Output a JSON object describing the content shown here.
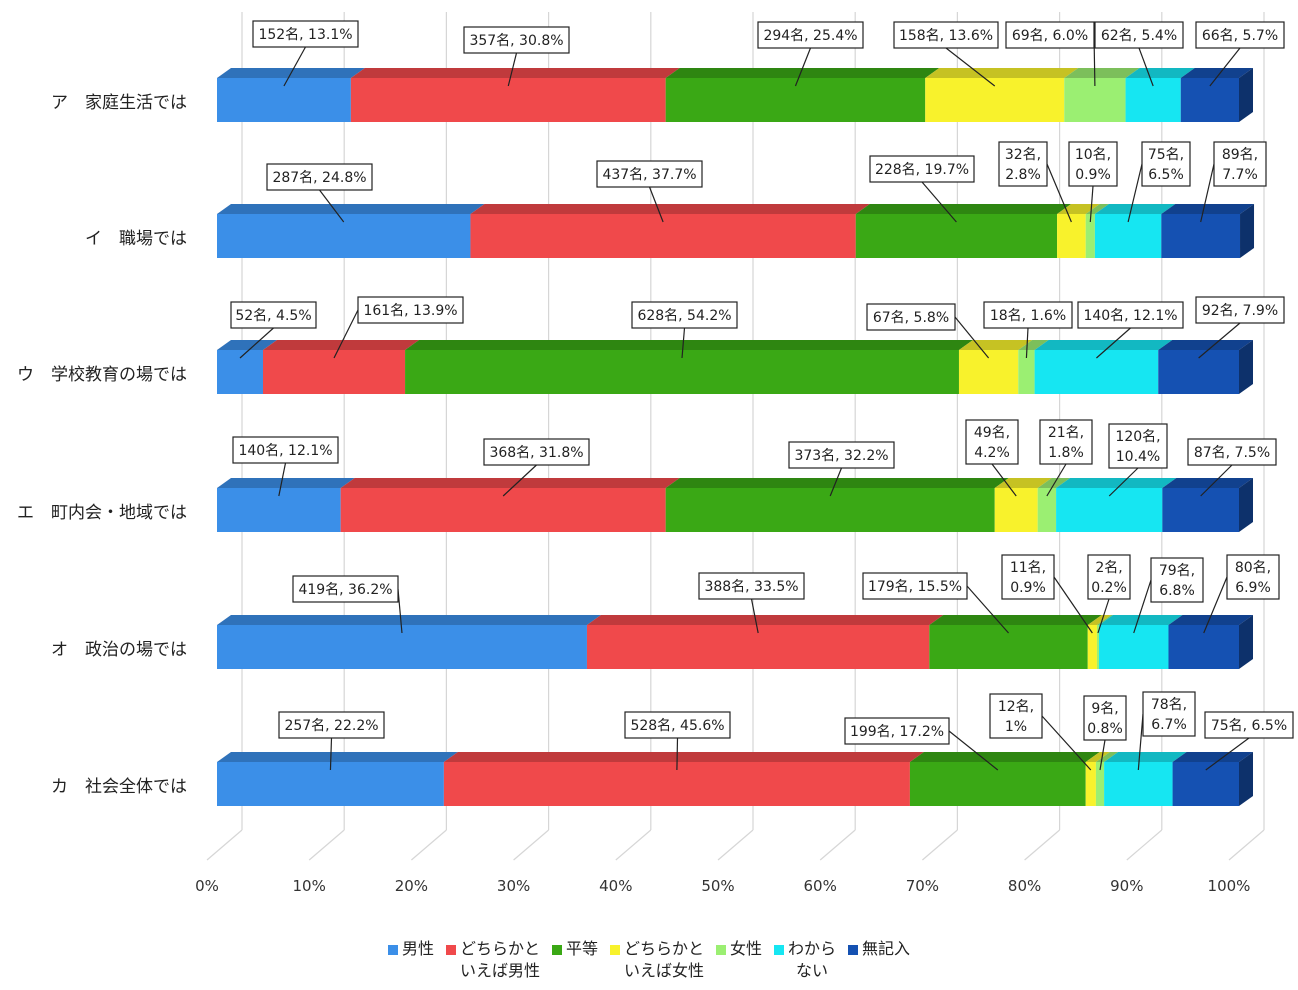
{
  "chart_data": {
    "type": "bar",
    "orientation": "horizontal-stacked-100",
    "categories": [
      "ア　家庭生活では",
      "イ　職場では",
      "ウ　学校教育の場では",
      "エ　町内会・地域では",
      "オ　政治の場では",
      "カ　社会全体では"
    ],
    "x_ticks": [
      "0%",
      "10%",
      "20%",
      "30%",
      "40%",
      "50%",
      "60%",
      "70%",
      "80%",
      "90%",
      "100%"
    ],
    "xlim": [
      0,
      100
    ],
    "grid": true,
    "legend_position": "bottom",
    "series": [
      {
        "name": "男性",
        "legend_lines": [
          "男性"
        ],
        "color": "#3b8fe8",
        "values": [
          13.1,
          24.8,
          4.5,
          12.1,
          36.2,
          22.2
        ],
        "labels": [
          [
            "152名, 13.1%"
          ],
          [
            "287名, 24.8%"
          ],
          [
            "52名, 4.5%"
          ],
          [
            "140名, 12.1%"
          ],
          [
            "419名, 36.2%"
          ],
          [
            "257名, 22.2%"
          ]
        ]
      },
      {
        "name": "どちらかといえば男性",
        "legend_lines": [
          "どちらかと",
          "いえば男性"
        ],
        "color": "#f0494b",
        "values": [
          30.8,
          37.7,
          13.9,
          31.8,
          33.5,
          45.6
        ],
        "labels": [
          [
            "357名, 30.8%"
          ],
          [
            "437名, 37.7%"
          ],
          [
            "161名, 13.9%"
          ],
          [
            "368名, 31.8%"
          ],
          [
            "388名, 33.5%"
          ],
          [
            "528名, 45.6%"
          ]
        ]
      },
      {
        "name": "平等",
        "legend_lines": [
          "平等"
        ],
        "color": "#3aa815",
        "values": [
          25.4,
          19.7,
          54.2,
          32.2,
          15.5,
          17.2
        ],
        "labels": [
          [
            "294名, 25.4%"
          ],
          [
            "228名, 19.7%"
          ],
          [
            "628名, 54.2%"
          ],
          [
            "373名, 32.2%"
          ],
          [
            "179名, 15.5%"
          ],
          [
            "199名, 17.2%"
          ]
        ]
      },
      {
        "name": "どちらかといえば女性",
        "legend_lines": [
          "どちらかと",
          "いえば女性"
        ],
        "color": "#f8f22c",
        "values": [
          13.6,
          2.8,
          5.8,
          4.2,
          0.9,
          1.0
        ],
        "labels": [
          [
            "158名, 13.6%"
          ],
          [
            "32名,",
            "2.8%"
          ],
          [
            "67名, 5.8%"
          ],
          [
            "49名,",
            "4.2%"
          ],
          [
            "11名,",
            "0.9%"
          ],
          [
            "12名,",
            "1%"
          ]
        ]
      },
      {
        "name": "女性",
        "legend_lines": [
          "女性"
        ],
        "color": "#9bef72",
        "values": [
          6.0,
          0.9,
          1.6,
          1.8,
          0.2,
          0.8
        ],
        "labels": [
          [
            "69名, 6.0%"
          ],
          [
            "10名,",
            "0.9%"
          ],
          [
            "18名, 1.6%"
          ],
          [
            "21名,",
            "1.8%"
          ],
          [
            "2名,",
            "0.2%"
          ],
          [
            "9名,",
            "0.8%"
          ]
        ]
      },
      {
        "name": "わからない",
        "legend_lines": [
          "わから",
          "ない"
        ],
        "color": "#16e6f2",
        "values": [
          5.4,
          6.5,
          12.1,
          10.4,
          6.8,
          6.7
        ],
        "labels": [
          [
            "62名, 5.4%"
          ],
          [
            "75名,",
            "6.5%"
          ],
          [
            "140名, 12.1%"
          ],
          [
            "120名,",
            "10.4%"
          ],
          [
            "79名,",
            "6.8%"
          ],
          [
            "78名,",
            "6.7%"
          ]
        ]
      },
      {
        "name": "無記入",
        "legend_lines": [
          "無記入"
        ],
        "color": "#1551b2",
        "values": [
          5.7,
          7.7,
          7.9,
          7.5,
          6.9,
          6.5
        ],
        "labels": [
          [
            "66名, 5.7%"
          ],
          [
            "89名,",
            "7.7%"
          ],
          [
            "92名, 7.9%"
          ],
          [
            "87名, 7.5%"
          ],
          [
            "80名,",
            "6.9%"
          ],
          [
            "75名, 6.5%"
          ]
        ]
      }
    ]
  }
}
